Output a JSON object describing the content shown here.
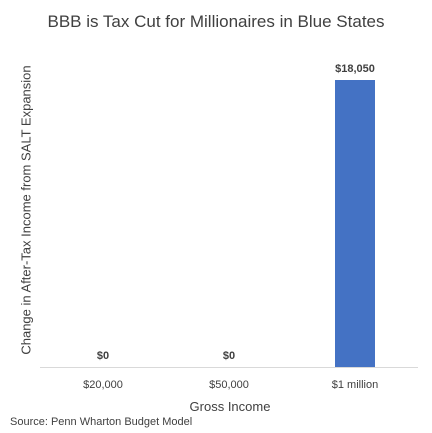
{
  "chart_data": {
    "type": "bar",
    "title": "BBB is Tax Cut for Millionaires in Blue States",
    "xlabel": "Gross Income",
    "ylabel": "Change in After-Tax Income from SALT Expansion",
    "categories": [
      "$20,000",
      "$50,000",
      "$1 million"
    ],
    "values": [
      0,
      0,
      18050
    ],
    "data_labels": [
      "$0",
      "$0",
      "$18,050"
    ],
    "bar_color": "#4472C4",
    "ylim": [
      0,
      18050
    ],
    "grid": false,
    "legend": "none"
  },
  "source": "Source: Penn Wharton Budget Model"
}
